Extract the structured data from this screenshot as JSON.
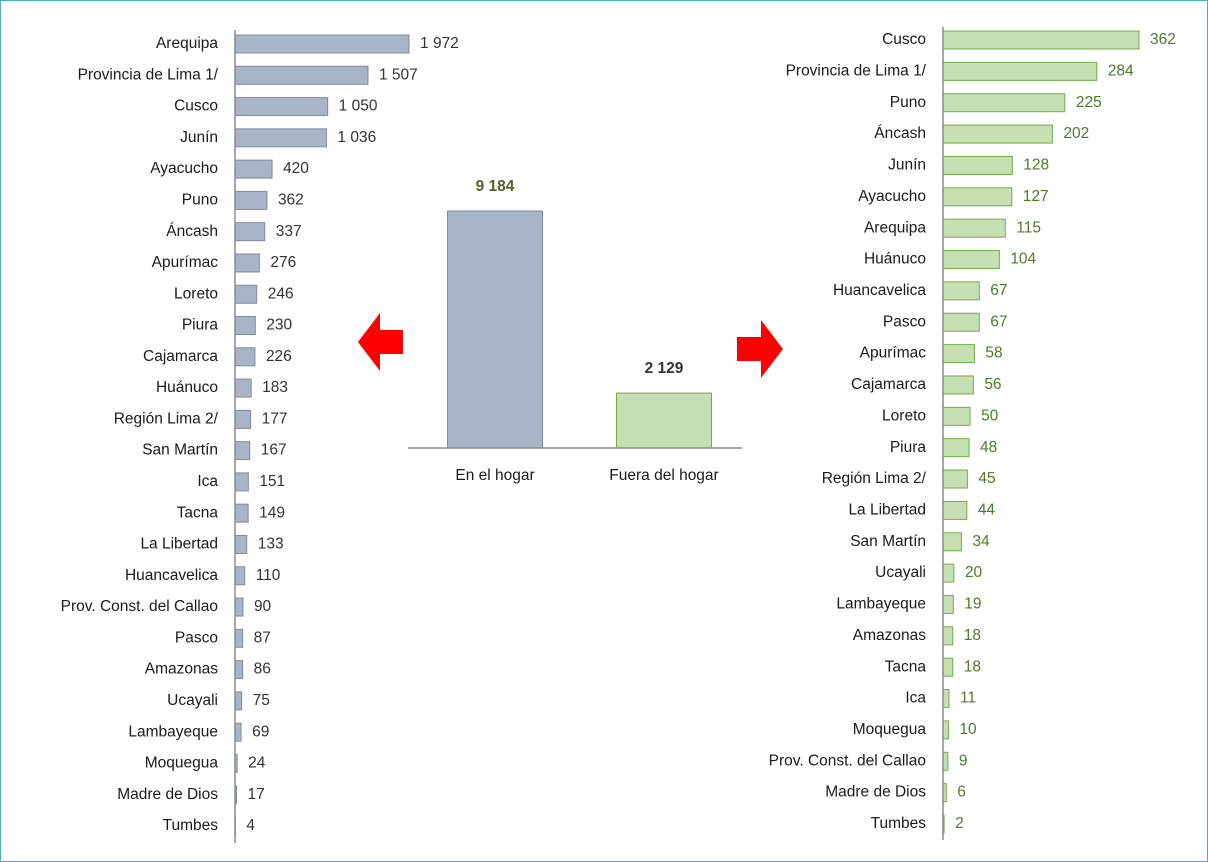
{
  "chart_data": [
    {
      "type": "bar",
      "orientation": "horizontal",
      "categories": [
        "Arequipa",
        "Provincia de Lima 1/",
        "Cusco",
        "Junín",
        "Ayacucho",
        "Puno",
        "Áncash",
        "Apurímac",
        "Loreto",
        "Piura",
        "Cajamarca",
        "Huánuco",
        "Región Lima 2/",
        "San Martín",
        "Ica",
        "Tacna",
        "La Libertad",
        "Huancavelica",
        "Prov. Const. del Callao",
        "Pasco",
        "Amazonas",
        "Ucayali",
        "Lambayeque",
        "Moquegua",
        "Madre de Dios",
        "Tumbes"
      ],
      "values": [
        1972,
        1507,
        1050,
        1036,
        420,
        362,
        337,
        276,
        246,
        230,
        226,
        183,
        177,
        167,
        151,
        149,
        133,
        110,
        90,
        87,
        86,
        75,
        69,
        24,
        17,
        4
      ],
      "value_labels": [
        "1 972",
        "1 507",
        "1 050",
        "1 036",
        "420",
        "362",
        "337",
        "276",
        "246",
        "230",
        "226",
        "183",
        "177",
        "167",
        "151",
        "149",
        "133",
        "110",
        "90",
        "87",
        "86",
        "75",
        "69",
        "24",
        "17",
        "4"
      ],
      "color": "#a9b4c8",
      "edge_color": "#7f8ba3",
      "label_color": "#333333",
      "xlim": [
        0,
        2000
      ]
    },
    {
      "type": "bar",
      "orientation": "vertical",
      "categories": [
        "En el hogar",
        "Fuera del hogar"
      ],
      "values": [
        9184,
        2129
      ],
      "value_labels": [
        "9 184",
        "2 129"
      ],
      "colors": [
        "#a9b4c8",
        "#c6e0b4"
      ],
      "edge_colors": [
        "#7f8ba3",
        "#70ad47"
      ],
      "label_colors": [
        "#4f6228",
        "#333333"
      ],
      "ylim": [
        0,
        10000
      ]
    },
    {
      "type": "bar",
      "orientation": "horizontal",
      "categories": [
        "Cusco",
        "Provincia de Lima 1/",
        "Puno",
        "Áncash",
        "Junín",
        "Ayacucho",
        "Arequipa",
        "Huánuco",
        "Huancavelica",
        "Pasco",
        "Apurímac",
        "Cajamarca",
        "Loreto",
        "Piura",
        "Región Lima 2/",
        "La Libertad",
        "San Martín",
        "Ucayali",
        "Lambayeque",
        "Amazonas",
        "Tacna",
        "Ica",
        "Moquegua",
        "Prov. Const. del Callao",
        "Madre de Dios",
        "Tumbes"
      ],
      "values": [
        362,
        284,
        225,
        202,
        128,
        127,
        115,
        104,
        67,
        67,
        58,
        56,
        50,
        48,
        45,
        44,
        34,
        20,
        19,
        18,
        18,
        11,
        10,
        9,
        6,
        2
      ],
      "color": "#c6e0b4",
      "edge_color": "#70ad47",
      "label_color": "#4e7a2a",
      "xlim": [
        0,
        400
      ]
    }
  ]
}
